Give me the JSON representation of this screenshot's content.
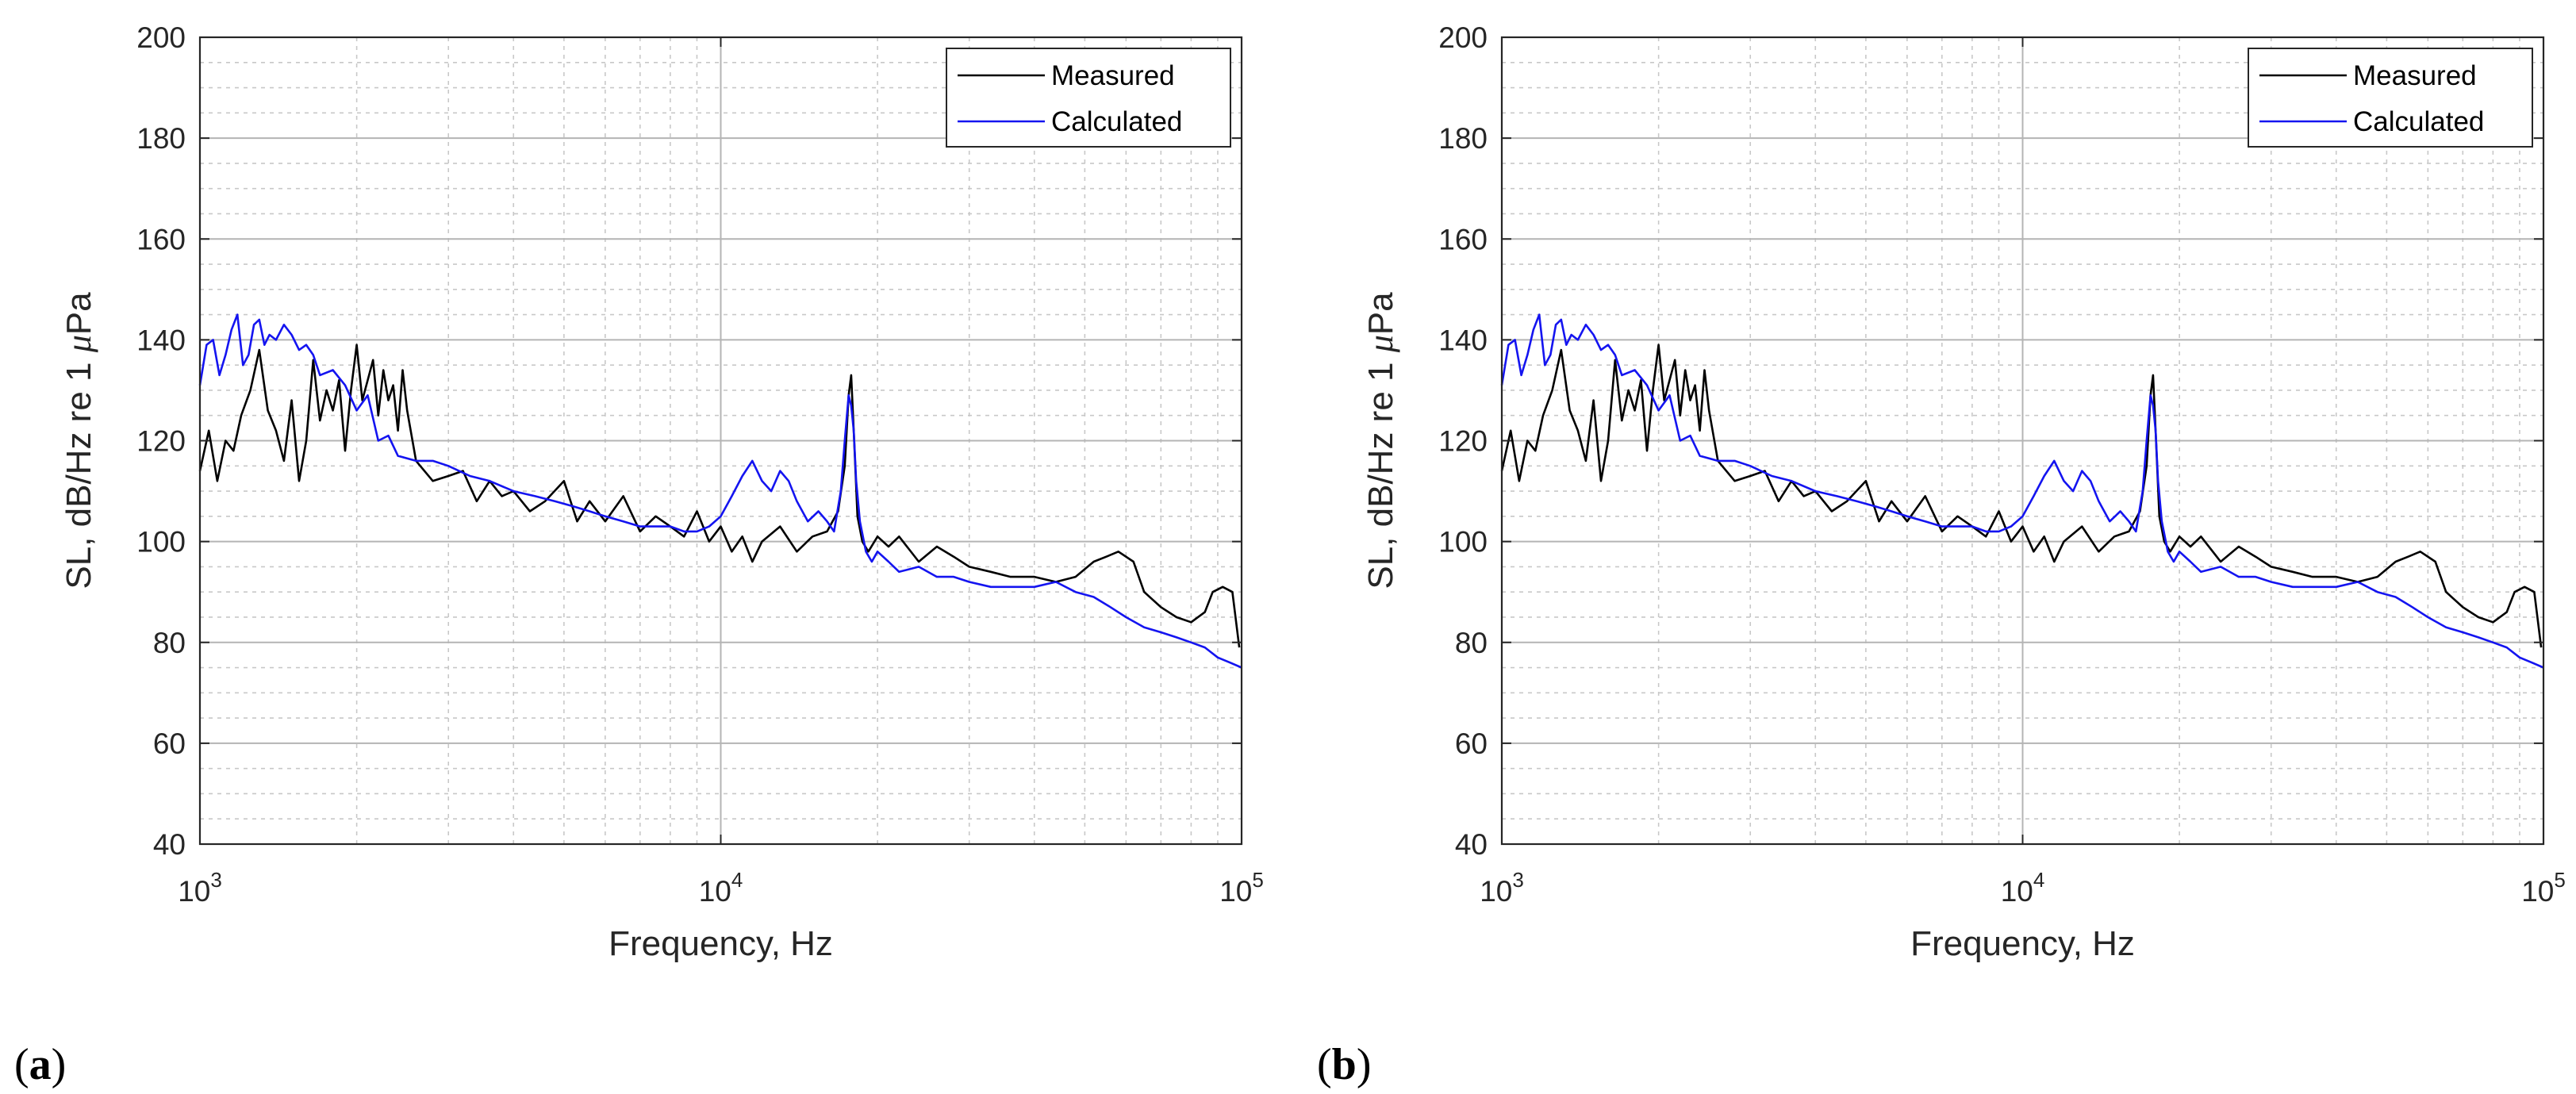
{
  "figure": {
    "panels": [
      {
        "label_open": "(",
        "label": "a",
        "label_close": ")"
      },
      {
        "label_open": "(",
        "label": "b",
        "label_close": ")"
      }
    ]
  },
  "chart_data": [
    {
      "type": "line",
      "panel": "a",
      "title": "",
      "xlabel": "Frequency, Hz",
      "ylabel_prefix": "SL, dB/Hz re 1 ",
      "ylabel_symbol": "μ",
      "ylabel_suffix": "Pa",
      "xscale": "log",
      "xlim": [
        1000,
        100000
      ],
      "ylim": [
        40,
        200
      ],
      "grid": true,
      "minor_grid": true,
      "legend_position": "top-right",
      "x_ticks": [
        {
          "base": "10",
          "exp": "3"
        },
        {
          "base": "10",
          "exp": "4"
        },
        {
          "base": "10",
          "exp": "5"
        }
      ],
      "y_ticks": [
        "40",
        "60",
        "80",
        "100",
        "120",
        "140",
        "160",
        "180",
        "200"
      ],
      "series": [
        {
          "name": "Measured",
          "color": "#000000",
          "x": [
            1000,
            1040,
            1080,
            1120,
            1160,
            1200,
            1250,
            1300,
            1350,
            1400,
            1450,
            1500,
            1550,
            1600,
            1650,
            1700,
            1750,
            1800,
            1850,
            1900,
            1950,
            2000,
            2050,
            2100,
            2150,
            2200,
            2250,
            2300,
            2350,
            2400,
            2450,
            2500,
            2600,
            2800,
            3000,
            3200,
            3400,
            3600,
            3800,
            4000,
            4300,
            4600,
            5000,
            5300,
            5600,
            6000,
            6500,
            7000,
            7500,
            8000,
            8500,
            9000,
            9500,
            10000,
            10500,
            11000,
            11500,
            12000,
            13000,
            14000,
            15000,
            16000,
            16800,
            17300,
            17600,
            17800,
            18000,
            18300,
            18700,
            19200,
            20000,
            21000,
            22000,
            24000,
            26000,
            28000,
            30000,
            33000,
            36000,
            40000,
            44000,
            48000,
            52000,
            55000,
            58000,
            62000,
            65000,
            70000,
            75000,
            80000,
            85000,
            88000,
            92000,
            96000,
            99000
          ],
          "values": [
            114,
            122,
            112,
            120,
            118,
            125,
            130,
            138,
            126,
            122,
            116,
            128,
            112,
            120,
            136,
            124,
            130,
            126,
            132,
            118,
            130,
            139,
            128,
            132,
            136,
            125,
            134,
            128,
            131,
            122,
            134,
            126,
            116,
            112,
            113,
            114,
            108,
            112,
            109,
            110,
            106,
            108,
            112,
            104,
            108,
            104,
            109,
            102,
            105,
            103,
            101,
            106,
            100,
            103,
            98,
            101,
            96,
            100,
            103,
            98,
            101,
            102,
            106,
            115,
            129,
            133,
            122,
            105,
            100,
            98,
            101,
            99,
            101,
            96,
            99,
            97,
            95,
            94,
            93,
            93,
            92,
            93,
            96,
            97,
            98,
            96,
            90,
            87,
            85,
            84,
            86,
            90,
            91,
            90,
            79
          ]
        },
        {
          "name": "Calculated",
          "color": "#1414f0",
          "x": [
            1000,
            1030,
            1060,
            1090,
            1120,
            1150,
            1180,
            1210,
            1240,
            1270,
            1300,
            1330,
            1360,
            1400,
            1450,
            1500,
            1550,
            1600,
            1650,
            1700,
            1800,
            1900,
            2000,
            2100,
            2200,
            2300,
            2400,
            2600,
            2800,
            3000,
            3300,
            3600,
            4000,
            4400,
            4800,
            5200,
            5600,
            6000,
            6500,
            7000,
            7500,
            8000,
            8500,
            9000,
            9500,
            10000,
            10500,
            11000,
            11500,
            12000,
            12500,
            13000,
            13500,
            14000,
            14700,
            15400,
            16000,
            16500,
            17000,
            17300,
            17600,
            17800,
            18000,
            18200,
            18500,
            19000,
            19500,
            20000,
            21000,
            22000,
            24000,
            26000,
            28000,
            30000,
            33000,
            36000,
            40000,
            44000,
            48000,
            52000,
            56000,
            60000,
            65000,
            70000,
            75000,
            80000,
            85000,
            90000,
            95000,
            100000
          ],
          "values": [
            131,
            139,
            140,
            133,
            137,
            142,
            145,
            135,
            137,
            143,
            144,
            139,
            141,
            140,
            143,
            141,
            138,
            139,
            137,
            133,
            134,
            131,
            126,
            129,
            120,
            121,
            117,
            116,
            116,
            115,
            113,
            112,
            110,
            109,
            108,
            107,
            106,
            105,
            104,
            103,
            103,
            103,
            102,
            102,
            103,
            105,
            109,
            113,
            116,
            112,
            110,
            114,
            112,
            108,
            104,
            106,
            104,
            102,
            110,
            120,
            129,
            127,
            122,
            112,
            104,
            98,
            96,
            98,
            96,
            94,
            95,
            93,
            93,
            92,
            91,
            91,
            91,
            92,
            90,
            89,
            87,
            85,
            83,
            82,
            81,
            80,
            79,
            77,
            76,
            75
          ]
        }
      ]
    },
    {
      "type": "line",
      "panel": "b",
      "title": "",
      "xlabel": "Frequency, Hz",
      "ylabel_prefix": "SL, dB/Hz re 1 ",
      "ylabel_symbol": "μ",
      "ylabel_suffix": "Pa",
      "xscale": "log",
      "xlim": [
        1000,
        100000
      ],
      "ylim": [
        40,
        200
      ],
      "grid": true,
      "minor_grid": true,
      "legend_position": "top-right",
      "x_ticks": [
        {
          "base": "10",
          "exp": "3"
        },
        {
          "base": "10",
          "exp": "4"
        },
        {
          "base": "10",
          "exp": "5"
        }
      ],
      "y_ticks": [
        "40",
        "60",
        "80",
        "100",
        "120",
        "140",
        "160",
        "180",
        "200"
      ],
      "series": [
        {
          "name": "Measured",
          "color": "#000000",
          "x": [
            1000,
            1040,
            1080,
            1120,
            1160,
            1200,
            1250,
            1300,
            1350,
            1400,
            1450,
            1500,
            1550,
            1600,
            1650,
            1700,
            1750,
            1800,
            1850,
            1900,
            1950,
            2000,
            2050,
            2100,
            2150,
            2200,
            2250,
            2300,
            2350,
            2400,
            2450,
            2500,
            2600,
            2800,
            3000,
            3200,
            3400,
            3600,
            3800,
            4000,
            4300,
            4600,
            5000,
            5300,
            5600,
            6000,
            6500,
            7000,
            7500,
            8000,
            8500,
            9000,
            9500,
            10000,
            10500,
            11000,
            11500,
            12000,
            13000,
            14000,
            15000,
            16000,
            16800,
            17300,
            17600,
            17800,
            18000,
            18300,
            18700,
            19200,
            20000,
            21000,
            22000,
            24000,
            26000,
            28000,
            30000,
            33000,
            36000,
            40000,
            44000,
            48000,
            52000,
            55000,
            58000,
            62000,
            65000,
            70000,
            75000,
            80000,
            85000,
            88000,
            92000,
            96000,
            99000
          ],
          "values": [
            114,
            122,
            112,
            120,
            118,
            125,
            130,
            138,
            126,
            122,
            116,
            128,
            112,
            120,
            136,
            124,
            130,
            126,
            132,
            118,
            130,
            139,
            128,
            132,
            136,
            125,
            134,
            128,
            131,
            122,
            134,
            126,
            116,
            112,
            113,
            114,
            108,
            112,
            109,
            110,
            106,
            108,
            112,
            104,
            108,
            104,
            109,
            102,
            105,
            103,
            101,
            106,
            100,
            103,
            98,
            101,
            96,
            100,
            103,
            98,
            101,
            102,
            106,
            115,
            129,
            133,
            122,
            105,
            100,
            98,
            101,
            99,
            101,
            96,
            99,
            97,
            95,
            94,
            93,
            93,
            92,
            93,
            96,
            97,
            98,
            96,
            90,
            87,
            85,
            84,
            86,
            90,
            91,
            90,
            79
          ]
        },
        {
          "name": "Calculated",
          "color": "#1414f0",
          "x": [
            1000,
            1030,
            1060,
            1090,
            1120,
            1150,
            1180,
            1210,
            1240,
            1270,
            1300,
            1330,
            1360,
            1400,
            1450,
            1500,
            1550,
            1600,
            1650,
            1700,
            1800,
            1900,
            2000,
            2100,
            2200,
            2300,
            2400,
            2600,
            2800,
            3000,
            3300,
            3600,
            4000,
            4400,
            4800,
            5200,
            5600,
            6000,
            6500,
            7000,
            7500,
            8000,
            8500,
            9000,
            9500,
            10000,
            10500,
            11000,
            11500,
            12000,
            12500,
            13000,
            13500,
            14000,
            14700,
            15400,
            16000,
            16500,
            17000,
            17300,
            17600,
            17800,
            18000,
            18200,
            18500,
            19000,
            19500,
            20000,
            21000,
            22000,
            24000,
            26000,
            28000,
            30000,
            33000,
            36000,
            40000,
            44000,
            48000,
            52000,
            56000,
            60000,
            65000,
            70000,
            75000,
            80000,
            85000,
            90000,
            95000,
            100000
          ],
          "values": [
            131,
            139,
            140,
            133,
            137,
            142,
            145,
            135,
            137,
            143,
            144,
            139,
            141,
            140,
            143,
            141,
            138,
            139,
            137,
            133,
            134,
            131,
            126,
            129,
            120,
            121,
            117,
            116,
            116,
            115,
            113,
            112,
            110,
            109,
            108,
            107,
            106,
            105,
            104,
            103,
            103,
            103,
            102,
            102,
            103,
            105,
            109,
            113,
            116,
            112,
            110,
            114,
            112,
            108,
            104,
            106,
            104,
            102,
            110,
            120,
            129,
            127,
            122,
            112,
            104,
            98,
            96,
            98,
            96,
            94,
            95,
            93,
            93,
            92,
            91,
            91,
            91,
            92,
            90,
            89,
            87,
            85,
            83,
            82,
            81,
            80,
            79,
            77,
            76,
            75
          ]
        }
      ]
    }
  ]
}
